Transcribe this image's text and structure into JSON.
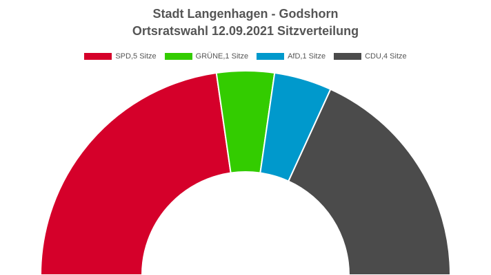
{
  "chart_data": {
    "type": "pie",
    "subtype": "parliament-semicircle",
    "title": "Stadt Langenhagen - Godshorn",
    "subtitle": "Ortsratswahl 12.09.2021 Sitzverteilung",
    "legend_position": "top",
    "series": [
      {
        "name": "SPD,5 Sitze",
        "value": 5,
        "color": "#d5002a"
      },
      {
        "name": "GRÜNE,1 Sitze",
        "value": 1,
        "color": "#33cc00"
      },
      {
        "name": "AfD,1 Sitze",
        "value": 1,
        "color": "#0099cc"
      },
      {
        "name": "CDU,4 Sitze",
        "value": 4,
        "color": "#4b4b4b"
      }
    ]
  }
}
